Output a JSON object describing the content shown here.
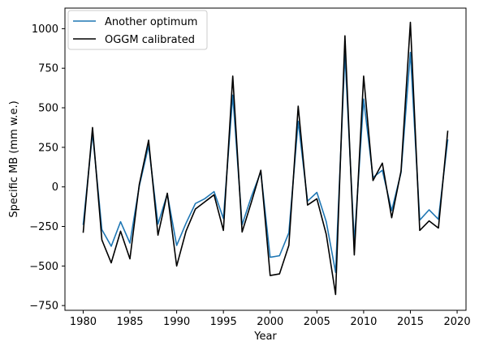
{
  "chart_data": {
    "type": "line",
    "xlabel": "Year",
    "ylabel": "Specific MB (mm w.e.)",
    "xlim": [
      1978.05,
      2020.95
    ],
    "ylim": [
      -780,
      1130
    ],
    "xticks": [
      1980,
      1985,
      1990,
      1995,
      2000,
      2005,
      2010,
      2015,
      2020
    ],
    "yticks": [
      -750,
      -500,
      -250,
      0,
      250,
      500,
      750,
      1000
    ],
    "grid": false,
    "legend_position": "top-left",
    "x": [
      1980,
      1981,
      1982,
      1983,
      1984,
      1985,
      1986,
      1987,
      1988,
      1989,
      1990,
      1991,
      1992,
      1993,
      1994,
      1995,
      1996,
      1997,
      1998,
      1999,
      2000,
      2001,
      2002,
      2003,
      2004,
      2005,
      2006,
      2007,
      2008,
      2009,
      2010,
      2011,
      2012,
      2013,
      2014,
      2015,
      2016,
      2017,
      2018,
      2019
    ],
    "series": [
      {
        "name": "Another optimum",
        "color": "#1f77b4",
        "values": [
          -240,
          340,
          -270,
          -375,
          -220,
          -355,
          5,
          260,
          -235,
          -45,
          -370,
          -230,
          -105,
          -75,
          -30,
          -200,
          580,
          -240,
          -60,
          95,
          -445,
          -435,
          -290,
          415,
          -90,
          -35,
          -220,
          -540,
          840,
          -350,
          555,
          60,
          105,
          -150,
          90,
          850,
          -210,
          -145,
          -205,
          300
        ]
      },
      {
        "name": "OGGM calibrated",
        "color": "#000000",
        "values": [
          -290,
          375,
          -335,
          -480,
          -280,
          -455,
          15,
          295,
          -305,
          -40,
          -500,
          -280,
          -140,
          -95,
          -50,
          -275,
          700,
          -285,
          -95,
          105,
          -560,
          -550,
          -370,
          510,
          -115,
          -75,
          -300,
          -680,
          955,
          -430,
          700,
          40,
          150,
          -195,
          100,
          1040,
          -275,
          -215,
          -260,
          355
        ]
      }
    ]
  }
}
